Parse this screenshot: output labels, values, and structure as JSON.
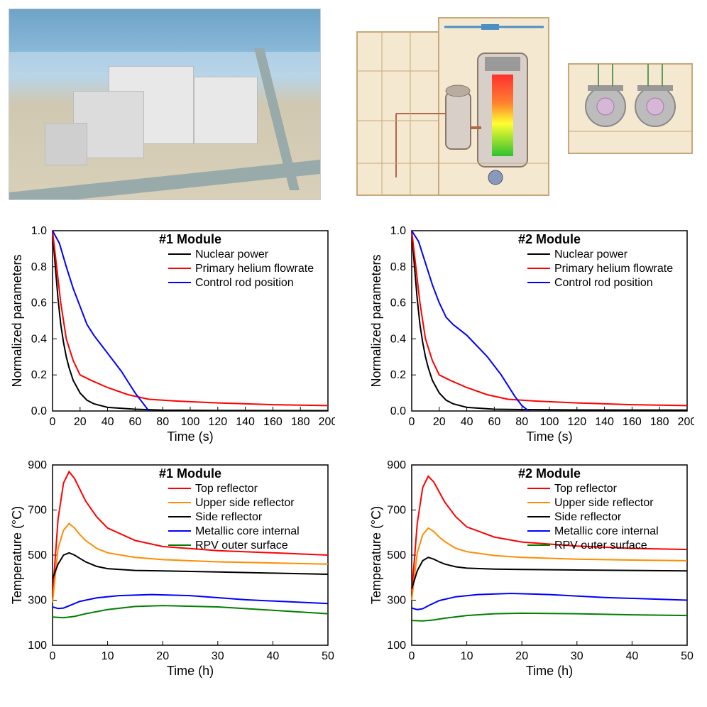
{
  "photo": {
    "description": "aerial-plant-photo",
    "sky_color": "#9ec5e0",
    "ground_color": "#d8d0b8",
    "building_color": "#e8e8e8"
  },
  "reactor_diagram": {
    "bg": "#f5e8d0",
    "vessel_color": "#d8d0c8",
    "core_hot": "#ff3030",
    "core_mid": "#ffff30",
    "core_cool": "#30c030"
  },
  "charts": {
    "top_left": {
      "type": "line",
      "title": "#1 Module",
      "xlabel": "Time (s)",
      "ylabel": "Normalized parameters",
      "xlim": [
        0,
        200
      ],
      "xtick_step": 20,
      "ylim": [
        0.0,
        1.0
      ],
      "ytick_step": 0.2,
      "background_color": "#ffffff",
      "axis_color": "#000000",
      "line_width": 2,
      "series": [
        {
          "name": "Nuclear power",
          "color": "#000000",
          "x": [
            0,
            2,
            4,
            6,
            8,
            10,
            12,
            15,
            20,
            25,
            30,
            40,
            60,
            80,
            120,
            200
          ],
          "y": [
            1.0,
            0.8,
            0.62,
            0.48,
            0.38,
            0.3,
            0.24,
            0.17,
            0.1,
            0.06,
            0.04,
            0.02,
            0.01,
            0.005,
            0.003,
            0.002
          ]
        },
        {
          "name": "Primary helium flowrate",
          "color": "#ff0000",
          "x": [
            0,
            3,
            6,
            10,
            15,
            20,
            28,
            40,
            55,
            70,
            90,
            120,
            160,
            200
          ],
          "y": [
            1.0,
            0.8,
            0.6,
            0.4,
            0.28,
            0.2,
            0.17,
            0.13,
            0.09,
            0.065,
            0.055,
            0.045,
            0.035,
            0.03
          ]
        },
        {
          "name": "Control rod position",
          "color": "#0000ff",
          "x": [
            0,
            5,
            10,
            15,
            20,
            25,
            30,
            35,
            40,
            45,
            50,
            55,
            60,
            65,
            70
          ],
          "y": [
            1.0,
            0.93,
            0.8,
            0.68,
            0.58,
            0.48,
            0.42,
            0.37,
            0.32,
            0.27,
            0.22,
            0.16,
            0.1,
            0.05,
            0.0
          ]
        }
      ]
    },
    "top_right": {
      "type": "line",
      "title": "#2 Module",
      "xlabel": "Time (s)",
      "ylabel": "Normalized parameters",
      "xlim": [
        0,
        200
      ],
      "xtick_step": 20,
      "ylim": [
        0.0,
        1.0
      ],
      "ytick_step": 0.2,
      "background_color": "#ffffff",
      "axis_color": "#000000",
      "line_width": 2,
      "series": [
        {
          "name": "Nuclear power",
          "color": "#000000",
          "x": [
            0,
            2,
            4,
            6,
            8,
            10,
            12,
            15,
            20,
            25,
            30,
            40,
            60,
            80,
            120,
            200
          ],
          "y": [
            1.0,
            0.8,
            0.62,
            0.48,
            0.38,
            0.3,
            0.24,
            0.17,
            0.1,
            0.06,
            0.04,
            0.02,
            0.01,
            0.008,
            0.006,
            0.005
          ]
        },
        {
          "name": "Primary helium flowrate",
          "color": "#ff0000",
          "x": [
            0,
            3,
            6,
            10,
            15,
            20,
            28,
            40,
            55,
            70,
            90,
            120,
            160,
            200
          ],
          "y": [
            1.0,
            0.8,
            0.6,
            0.4,
            0.28,
            0.2,
            0.17,
            0.13,
            0.09,
            0.065,
            0.055,
            0.045,
            0.035,
            0.03
          ]
        },
        {
          "name": "Control rod position",
          "color": "#0000ff",
          "x": [
            0,
            5,
            10,
            15,
            20,
            25,
            30,
            35,
            40,
            45,
            50,
            55,
            60,
            65,
            70,
            75,
            80,
            85
          ],
          "y": [
            1.0,
            0.94,
            0.82,
            0.7,
            0.6,
            0.52,
            0.48,
            0.45,
            0.42,
            0.38,
            0.34,
            0.3,
            0.25,
            0.2,
            0.14,
            0.08,
            0.03,
            0.0
          ]
        }
      ]
    },
    "bottom_left": {
      "type": "line",
      "title": "#1 Module",
      "xlabel": "Time (h)",
      "ylabel": "Temperature (°C)",
      "xlim": [
        0,
        50
      ],
      "xtick_step": 10,
      "ylim": [
        100,
        900
      ],
      "ytick_step": 200,
      "background_color": "#ffffff",
      "axis_color": "#000000",
      "line_width": 2,
      "series": [
        {
          "name": "Top  reflector",
          "color": "#ff0000",
          "x": [
            0,
            1,
            2,
            3,
            4,
            5,
            6,
            8,
            10,
            15,
            20,
            30,
            40,
            50
          ],
          "y": [
            320,
            660,
            820,
            870,
            840,
            790,
            740,
            670,
            620,
            565,
            538,
            520,
            510,
            500
          ]
        },
        {
          "name": "Upper side reflector",
          "color": "#ff8c00",
          "x": [
            0,
            1,
            2,
            3,
            4,
            5,
            6,
            8,
            10,
            15,
            20,
            30,
            40,
            50
          ],
          "y": [
            290,
            530,
            610,
            640,
            620,
            590,
            565,
            530,
            510,
            490,
            480,
            470,
            465,
            460
          ]
        },
        {
          "name": "Side reflector",
          "color": "#000000",
          "x": [
            0,
            1,
            2,
            3,
            4,
            5,
            6,
            8,
            10,
            15,
            20,
            30,
            40,
            50
          ],
          "y": [
            395,
            460,
            500,
            510,
            500,
            485,
            470,
            450,
            440,
            432,
            430,
            425,
            420,
            415
          ]
        },
        {
          "name": "Metallic core internal",
          "color": "#0000ff",
          "x": [
            0,
            1,
            2,
            3,
            5,
            8,
            12,
            18,
            25,
            35,
            50
          ],
          "y": [
            270,
            263,
            265,
            275,
            295,
            310,
            320,
            325,
            320,
            302,
            285
          ]
        },
        {
          "name": "RPV outer surface",
          "color": "#008000",
          "x": [
            0,
            2,
            4,
            6,
            10,
            15,
            20,
            30,
            40,
            50
          ],
          "y": [
            225,
            222,
            228,
            240,
            258,
            272,
            276,
            270,
            255,
            240
          ]
        }
      ]
    },
    "bottom_right": {
      "type": "line",
      "title": "#2 Module",
      "xlabel": "Time (h)",
      "ylabel": "Temperature (°C)",
      "xlim": [
        0,
        50
      ],
      "xtick_step": 10,
      "ylim": [
        100,
        900
      ],
      "ytick_step": 200,
      "background_color": "#ffffff",
      "axis_color": "#000000",
      "line_width": 2,
      "series": [
        {
          "name": "Top  reflector",
          "color": "#ff0000",
          "x": [
            0,
            1,
            2,
            3,
            4,
            5,
            6,
            8,
            10,
            15,
            20,
            30,
            40,
            50
          ],
          "y": [
            330,
            640,
            800,
            850,
            825,
            780,
            735,
            670,
            625,
            580,
            558,
            540,
            530,
            525
          ]
        },
        {
          "name": "Upper side reflector",
          "color": "#ff8c00",
          "x": [
            0,
            1,
            2,
            3,
            4,
            5,
            6,
            8,
            10,
            15,
            20,
            30,
            40,
            50
          ],
          "y": [
            300,
            510,
            590,
            620,
            605,
            580,
            560,
            530,
            515,
            498,
            490,
            482,
            478,
            475
          ]
        },
        {
          "name": "Side reflector",
          "color": "#000000",
          "x": [
            0,
            1,
            2,
            3,
            4,
            5,
            6,
            8,
            10,
            15,
            20,
            30,
            40,
            50
          ],
          "y": [
            350,
            430,
            475,
            490,
            482,
            470,
            460,
            448,
            442,
            438,
            436,
            434,
            432,
            430
          ]
        },
        {
          "name": "Metallic core internal",
          "color": "#0000ff",
          "x": [
            0,
            1,
            2,
            3,
            5,
            8,
            12,
            18,
            25,
            35,
            50
          ],
          "y": [
            265,
            258,
            262,
            275,
            298,
            315,
            325,
            330,
            325,
            312,
            300
          ]
        },
        {
          "name": "RPV outer surface",
          "color": "#008000",
          "x": [
            0,
            2,
            4,
            6,
            10,
            15,
            20,
            30,
            40,
            50
          ],
          "y": [
            210,
            208,
            212,
            220,
            232,
            240,
            242,
            240,
            235,
            232
          ]
        }
      ]
    }
  }
}
